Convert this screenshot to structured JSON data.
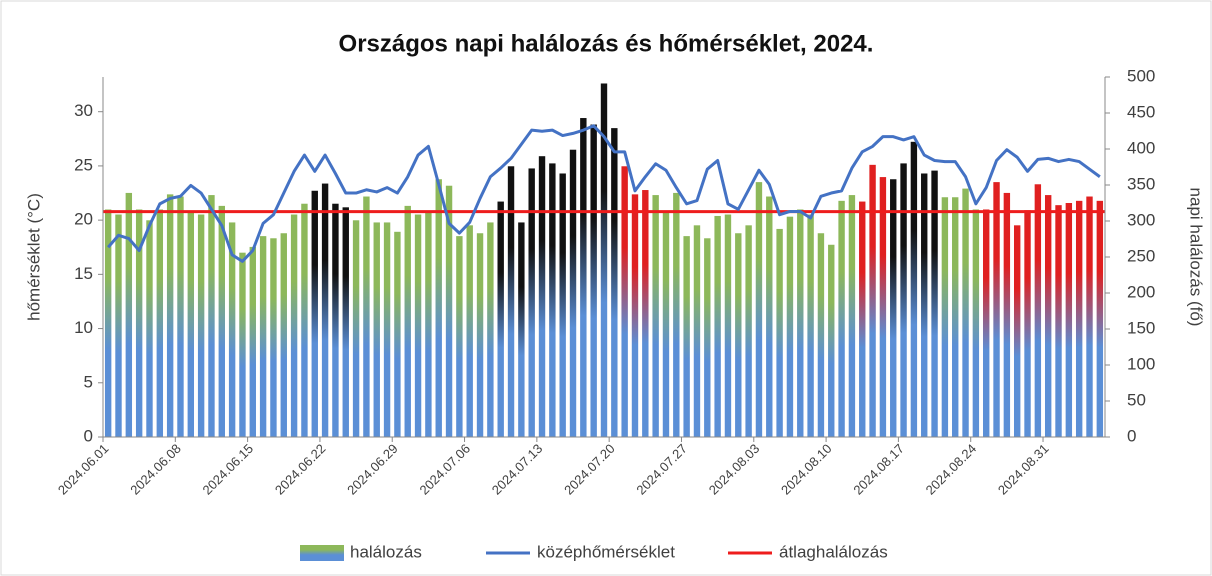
{
  "chart_data": {
    "type": "bar_line",
    "title": "Országos napi halálozás és hőmérséklet, 2024.",
    "ylabel": "hőmérséklet (°C)",
    "y2label": "napi halálozás (fő)",
    "ylim": [
      0,
      33.2
    ],
    "yticks": [
      0,
      5,
      10,
      15,
      20,
      25,
      30
    ],
    "y2lim": [
      0,
      500
    ],
    "y2ticks": [
      0,
      50,
      100,
      150,
      200,
      250,
      300,
      350,
      400,
      450,
      500
    ],
    "legend": "bottom",
    "categories": [
      "2024.06.01",
      null,
      null,
      null,
      null,
      null,
      null,
      "2024.06.08",
      null,
      null,
      null,
      null,
      null,
      null,
      "2024.06.15",
      null,
      null,
      null,
      null,
      null,
      null,
      "2024.06.22",
      null,
      null,
      null,
      null,
      null,
      null,
      "2024.06.29",
      null,
      null,
      null,
      null,
      null,
      null,
      "2024.07.06",
      null,
      null,
      null,
      null,
      null,
      null,
      "2024.07.13",
      null,
      null,
      null,
      null,
      null,
      null,
      "2024.07.20",
      null,
      null,
      null,
      null,
      null,
      null,
      "2024.07.27",
      null,
      null,
      null,
      null,
      null,
      null,
      "2024.08.03",
      null,
      null,
      null,
      null,
      null,
      null,
      "2024.08.10",
      null,
      null,
      null,
      null,
      null,
      null,
      "2024.08.17",
      null,
      null,
      null,
      null,
      null,
      null,
      "2024.08.24",
      null,
      null,
      null,
      null,
      null,
      null,
      "2024.08.31",
      null,
      null,
      null,
      null,
      null
    ],
    "series": [
      {
        "name": "halálozás",
        "type": "bar",
        "axis": "y2",
        "color": "#8db85a",
        "base_color": "#5b8fd6",
        "values": [
          316,
          309,
          339,
          316,
          301,
          316,
          337,
          334,
          313,
          309,
          336,
          321,
          298,
          256,
          264,
          279,
          276,
          283,
          309,
          324,
          342,
          352,
          324,
          319,
          301,
          334,
          298,
          298,
          285,
          321,
          309,
          313,
          358,
          349,
          279,
          294,
          283,
          298,
          327,
          376,
          298,
          373,
          390,
          380,
          366,
          399,
          443,
          434,
          491,
          429,
          376,
          337,
          343,
          336,
          313,
          339,
          279,
          294,
          276,
          307,
          309,
          283,
          294,
          354,
          334,
          289,
          306,
          316,
          309,
          283,
          267,
          328,
          336,
          327,
          378,
          361,
          358,
          380,
          410,
          366,
          370,
          333,
          333,
          345,
          316,
          316,
          354,
          339,
          294,
          315,
          351,
          336,
          322,
          325,
          328,
          334,
          328
        ],
        "colors": [
          "#8db85a",
          "#8db85a",
          "#8db85a",
          "#8db85a",
          "#8db85a",
          "#8db85a",
          "#8db85a",
          "#8db85a",
          "#8db85a",
          "#8db85a",
          "#8db85a",
          "#8db85a",
          "#8db85a",
          "#8db85a",
          "#8db85a",
          "#8db85a",
          "#8db85a",
          "#8db85a",
          "#8db85a",
          "#8db85a",
          "#111111",
          "#111111",
          "#111111",
          "#111111",
          "#8db85a",
          "#8db85a",
          "#8db85a",
          "#8db85a",
          "#8db85a",
          "#8db85a",
          "#8db85a",
          "#8db85a",
          "#8db85a",
          "#8db85a",
          "#8db85a",
          "#8db85a",
          "#8db85a",
          "#8db85a",
          "#111111",
          "#111111",
          "#111111",
          "#111111",
          "#111111",
          "#111111",
          "#111111",
          "#111111",
          "#111111",
          "#111111",
          "#111111",
          "#111111",
          "#e02020",
          "#e02020",
          "#e02020",
          "#8db85a",
          "#8db85a",
          "#8db85a",
          "#8db85a",
          "#8db85a",
          "#8db85a",
          "#8db85a",
          "#8db85a",
          "#8db85a",
          "#8db85a",
          "#8db85a",
          "#8db85a",
          "#8db85a",
          "#8db85a",
          "#8db85a",
          "#8db85a",
          "#8db85a",
          "#8db85a",
          "#8db85a",
          "#8db85a",
          "#e02020",
          "#e02020",
          "#e02020",
          "#111111",
          "#111111",
          "#111111",
          "#111111",
          "#111111",
          "#8db85a",
          "#8db85a",
          "#8db85a",
          "#8db85a",
          "#e02020",
          "#e02020",
          "#e02020",
          "#e02020",
          "#e02020",
          "#e02020",
          "#e02020",
          "#e02020",
          "#e02020",
          "#e02020",
          "#e02020",
          "#e02020"
        ]
      },
      {
        "name": "középhőmérséklet",
        "type": "line",
        "color": "#4472c4",
        "values": [
          17.5,
          18.6,
          18.3,
          17.2,
          19.5,
          21.5,
          22,
          22.2,
          23.2,
          22.5,
          21,
          19.5,
          16.8,
          16.2,
          17.2,
          19.7,
          20.5,
          22.5,
          24.5,
          26,
          24.5,
          26,
          24.3,
          22.5,
          22.5,
          22.8,
          22.6,
          23,
          22.5,
          24,
          26,
          26.8,
          23.3,
          19.7,
          18.8,
          19.8,
          22,
          24,
          24.8,
          25.7,
          27,
          28.3,
          28.2,
          28.3,
          27.8,
          28,
          28.3,
          28.7,
          27.7,
          26.3,
          26.3,
          22.7,
          24,
          25.2,
          24.6,
          23,
          21.5,
          21.8,
          24.7,
          25.5,
          21.5,
          21,
          22.8,
          24.6,
          23.3,
          20.5,
          20.8,
          20.8,
          20.2,
          22.2,
          22.5,
          22.7,
          24.8,
          26.3,
          26.8,
          27.7,
          27.7,
          27.4,
          27.7,
          26,
          25.5,
          25.4,
          25.4,
          24,
          21.5,
          23,
          25.5,
          26.5,
          25.8,
          24.5,
          25.6,
          25.7,
          25.4,
          25.6,
          25.4,
          24.7,
          24
        ]
      }
    ],
    "reference_line": {
      "name": "átlaghalálozás",
      "axis": "y2",
      "value": 313,
      "color": "#ee1c1c"
    }
  }
}
